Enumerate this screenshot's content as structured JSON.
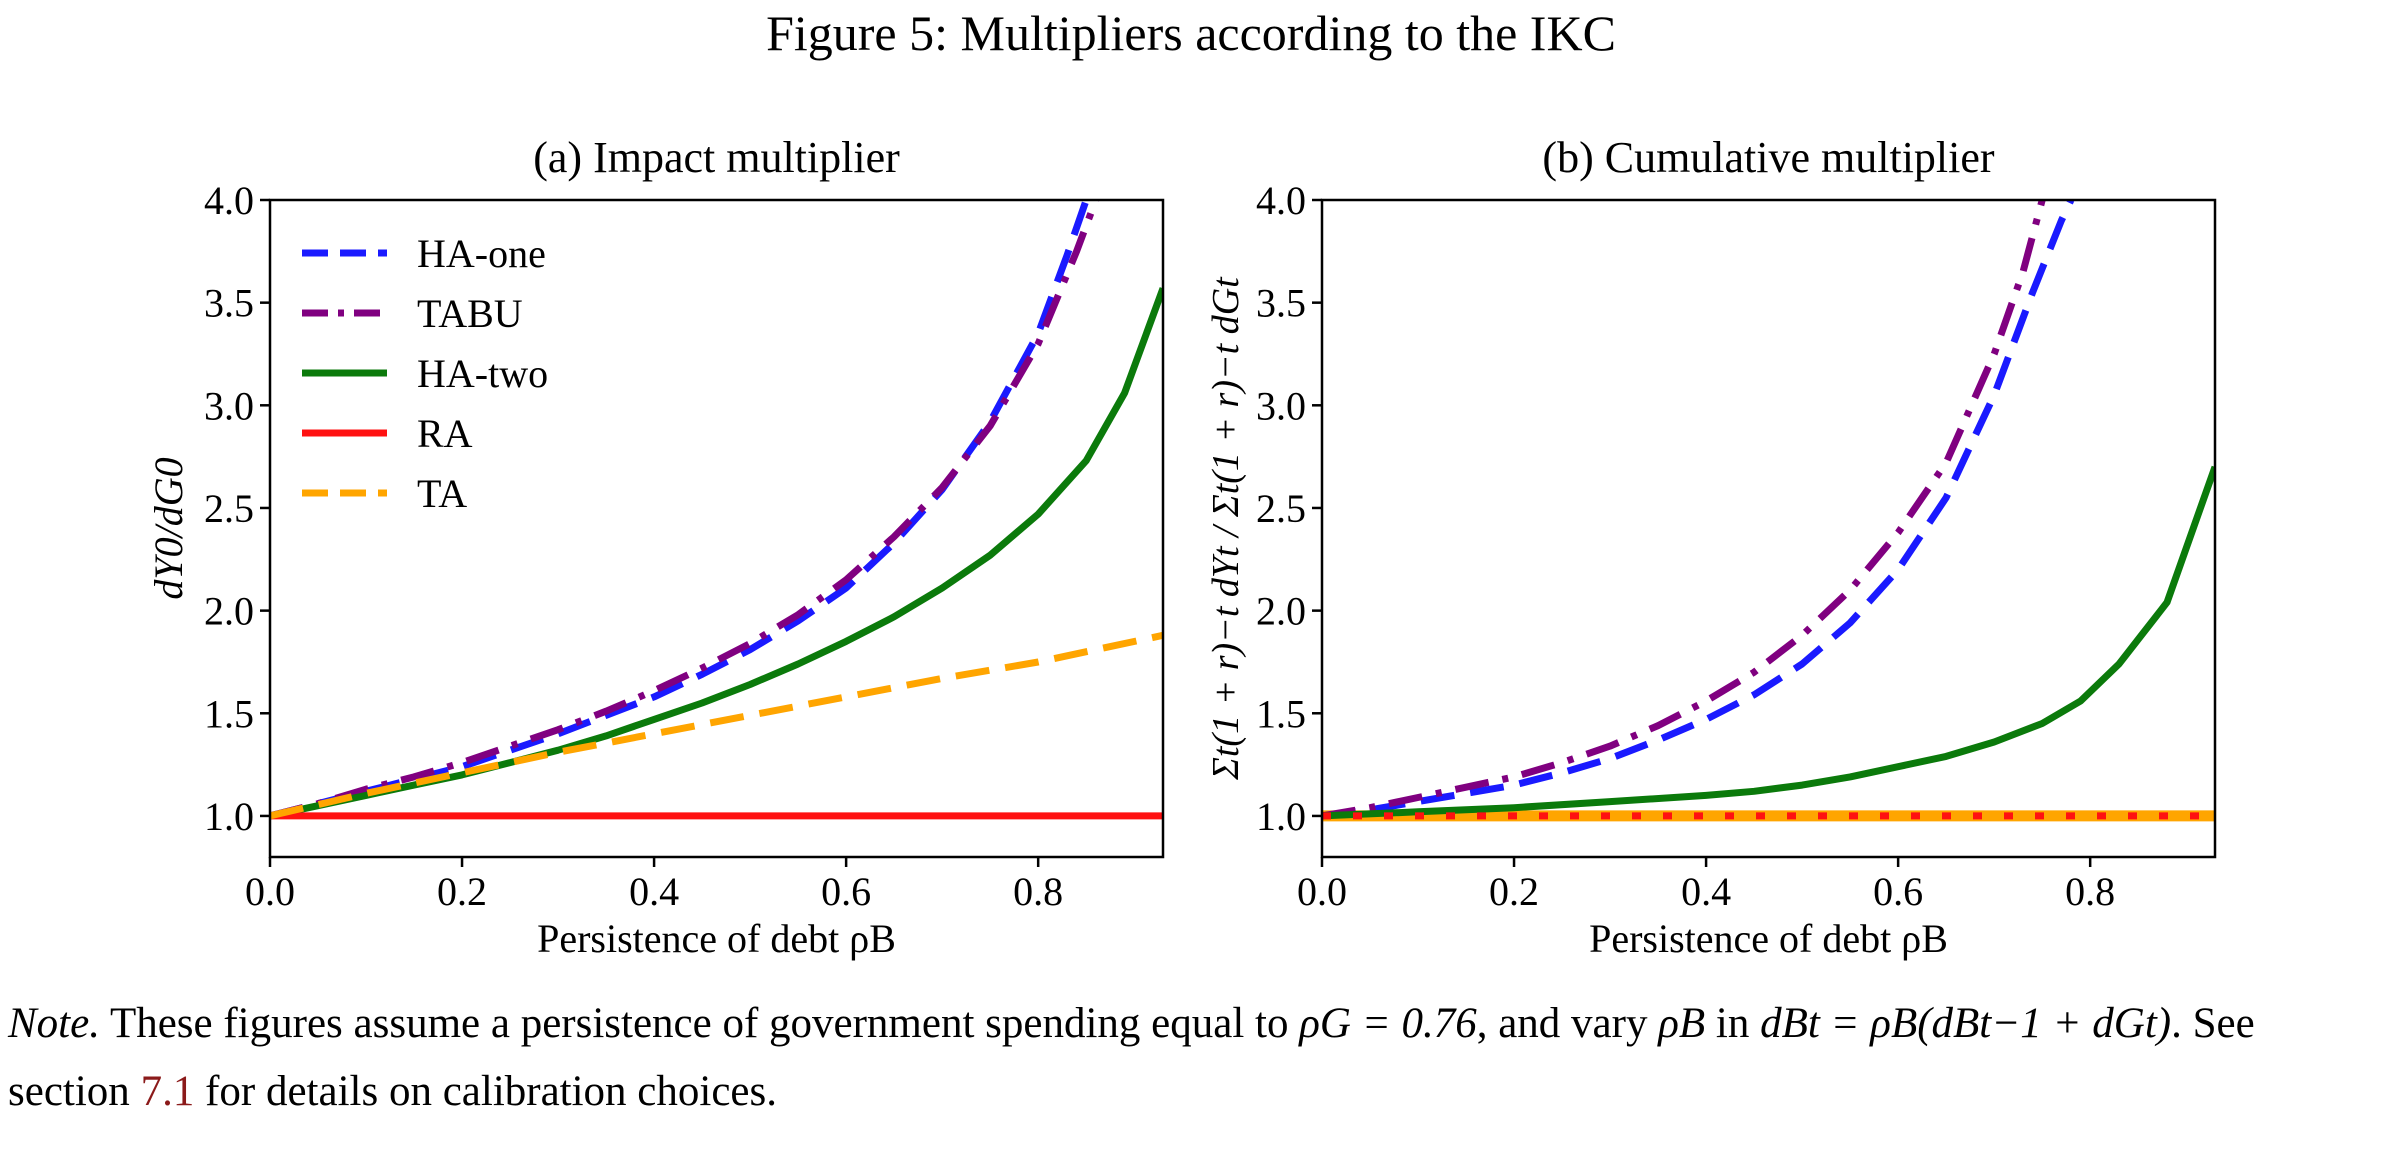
{
  "figure_title": "Figure 5: Multipliers according to the IKC",
  "colors": {
    "HA-one": "#1a1aff",
    "TABU": "#800080",
    "HA-two": "#0b7a0b",
    "RA": "#ff1111",
    "TA": "#ffa500"
  },
  "note": {
    "prefix": "Note.",
    "text1": " These figures assume a persistence of government spending equal to ",
    "rho_g": "ρG = 0.76",
    "text2": ", and vary ",
    "rho_b": "ρB",
    "text3": " in ",
    "equation": "dBt = ρB(dBt−1 + dGt)",
    "text4": ". See section ",
    "section_ref": "7.1",
    "text5": " for details on calibration choices."
  },
  "chart_data": [
    {
      "type": "line",
      "title": "(a) Impact multiplier",
      "xlabel": "Persistence of debt ρB",
      "ylabel": "dY0/dG0",
      "xlim": [
        0,
        0.93
      ],
      "ylim": [
        0.8,
        4.0
      ],
      "xticks": [
        "0.0",
        "0.2",
        "0.4",
        "0.6",
        "0.8"
      ],
      "yticks": [
        "1.0",
        "1.5",
        "2.0",
        "2.5",
        "3.0",
        "3.5",
        "4.0"
      ],
      "legend_position": "upper-left",
      "series": [
        {
          "name": "HA-one",
          "style": "dashed",
          "x": [
            0,
            0.05,
            0.1,
            0.15,
            0.2,
            0.25,
            0.3,
            0.35,
            0.4,
            0.45,
            0.5,
            0.55,
            0.6,
            0.65,
            0.7,
            0.75,
            0.8,
            0.83,
            0.85
          ],
          "y": [
            1.0,
            1.06,
            1.12,
            1.18,
            1.24,
            1.32,
            1.4,
            1.49,
            1.58,
            1.69,
            1.81,
            1.95,
            2.11,
            2.33,
            2.59,
            2.92,
            3.35,
            3.73,
            4.0
          ]
        },
        {
          "name": "TABU",
          "style": "dashdot",
          "x": [
            0,
            0.05,
            0.1,
            0.15,
            0.2,
            0.25,
            0.3,
            0.35,
            0.4,
            0.45,
            0.5,
            0.55,
            0.6,
            0.65,
            0.7,
            0.75,
            0.8,
            0.84,
            0.86
          ],
          "y": [
            1.0,
            1.06,
            1.13,
            1.19,
            1.26,
            1.34,
            1.42,
            1.51,
            1.61,
            1.72,
            1.84,
            1.98,
            2.15,
            2.36,
            2.6,
            2.9,
            3.3,
            3.75,
            4.0
          ]
        },
        {
          "name": "HA-two",
          "style": "solid",
          "x": [
            0,
            0.05,
            0.1,
            0.15,
            0.2,
            0.25,
            0.3,
            0.35,
            0.4,
            0.45,
            0.5,
            0.55,
            0.6,
            0.65,
            0.7,
            0.75,
            0.8,
            0.85,
            0.89,
            0.93
          ],
          "y": [
            1.0,
            1.05,
            1.1,
            1.15,
            1.2,
            1.26,
            1.32,
            1.39,
            1.47,
            1.55,
            1.64,
            1.74,
            1.85,
            1.97,
            2.11,
            2.27,
            2.47,
            2.73,
            3.06,
            3.57
          ]
        },
        {
          "name": "RA",
          "style": "solid",
          "x": [
            0,
            0.93
          ],
          "y": [
            1.0,
            1.0
          ]
        },
        {
          "name": "TA",
          "style": "dashed",
          "x": [
            0,
            0.1,
            0.2,
            0.3,
            0.4,
            0.5,
            0.6,
            0.7,
            0.8,
            0.93
          ],
          "y": [
            1.0,
            1.11,
            1.21,
            1.31,
            1.4,
            1.49,
            1.58,
            1.67,
            1.75,
            1.88
          ]
        }
      ]
    },
    {
      "type": "line",
      "title": "(b) Cumulative multiplier",
      "xlabel": "Persistence of debt ρB",
      "ylabel": "Σt(1 + r)−t dYt / Σt(1 + r)−t dGt",
      "xlim": [
        0,
        0.93
      ],
      "ylim": [
        0.8,
        4.0
      ],
      "xticks": [
        "0.0",
        "0.2",
        "0.4",
        "0.6",
        "0.8"
      ],
      "yticks": [
        "1.0",
        "1.5",
        "2.0",
        "2.5",
        "3.0",
        "3.5",
        "4.0"
      ],
      "series": [
        {
          "name": "HA-one",
          "style": "dashed",
          "x": [
            0,
            0.05,
            0.1,
            0.15,
            0.2,
            0.25,
            0.3,
            0.35,
            0.4,
            0.45,
            0.5,
            0.55,
            0.6,
            0.65,
            0.7,
            0.74,
            0.77,
            0.78
          ],
          "y": [
            1.0,
            1.03,
            1.07,
            1.11,
            1.15,
            1.21,
            1.28,
            1.37,
            1.47,
            1.59,
            1.74,
            1.94,
            2.2,
            2.55,
            3.05,
            3.55,
            3.9,
            4.0
          ]
        },
        {
          "name": "TABU",
          "style": "dashdot",
          "x": [
            0,
            0.05,
            0.1,
            0.15,
            0.2,
            0.25,
            0.3,
            0.35,
            0.4,
            0.45,
            0.5,
            0.55,
            0.6,
            0.65,
            0.7,
            0.73,
            0.75
          ],
          "y": [
            1.0,
            1.04,
            1.09,
            1.14,
            1.19,
            1.26,
            1.34,
            1.44,
            1.56,
            1.7,
            1.88,
            2.1,
            2.38,
            2.72,
            3.25,
            3.65,
            4.0
          ]
        },
        {
          "name": "HA-two",
          "style": "solid",
          "x": [
            0,
            0.1,
            0.2,
            0.3,
            0.4,
            0.45,
            0.5,
            0.55,
            0.6,
            0.65,
            0.7,
            0.75,
            0.79,
            0.83,
            0.88,
            0.93
          ],
          "y": [
            1.0,
            1.02,
            1.04,
            1.07,
            1.1,
            1.12,
            1.15,
            1.19,
            1.24,
            1.29,
            1.36,
            1.45,
            1.56,
            1.74,
            2.04,
            2.7
          ]
        },
        {
          "name": "RA",
          "style": "dotted",
          "x": [
            0,
            0.93
          ],
          "y": [
            1.0,
            1.0
          ]
        },
        {
          "name": "TA",
          "style": "solid",
          "x": [
            0,
            0.93
          ],
          "y": [
            1.0,
            1.0
          ]
        }
      ]
    }
  ]
}
